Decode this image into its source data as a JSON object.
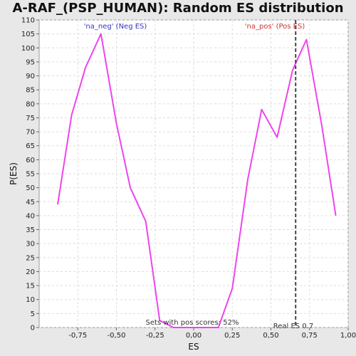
{
  "chart_data": {
    "type": "line",
    "title": "A-RAF_(PSP_HUMAN): Random ES distribution",
    "xlabel": "ES",
    "ylabel": "P(ES)",
    "xlim": [
      -1.0,
      1.0
    ],
    "ylim": [
      0,
      110
    ],
    "x_ticks": [
      -0.75,
      -0.5,
      -0.25,
      0.0,
      0.25,
      0.5,
      0.75,
      1.0
    ],
    "x_tick_labels": [
      "-0,75",
      "-0,50",
      "-0,25",
      "0,00",
      "0,25",
      "0,50",
      "0,75",
      "1,00"
    ],
    "y_ticks": [
      0,
      5,
      10,
      15,
      20,
      25,
      30,
      35,
      40,
      45,
      50,
      55,
      60,
      65,
      70,
      75,
      80,
      85,
      90,
      95,
      100,
      105,
      110
    ],
    "grid": true,
    "series": [
      {
        "color": "#ee44ee",
        "x": [
          -0.88,
          -0.79,
          -0.7,
          -0.6,
          -0.5,
          -0.41,
          -0.31,
          -0.22,
          -0.13,
          -0.03,
          0.06,
          0.16,
          0.25,
          0.35,
          0.44,
          0.54,
          0.64,
          0.73,
          0.83,
          0.92
        ],
        "y": [
          44,
          76,
          93,
          105,
          73,
          50,
          38,
          2.5,
          0,
          0,
          0,
          0,
          14,
          53,
          78,
          68,
          92,
          103,
          72,
          40
        ]
      }
    ],
    "vline": {
      "x": 0.66,
      "color": "#444444",
      "style": "dashed"
    },
    "annotations": {
      "neg_label": {
        "text": "'na_neg' (Neg ES)",
        "color": "#3333cc"
      },
      "pos_label": {
        "text": "'na_pos' (Pos ES)",
        "color": "#cc3333"
      },
      "sets_text": "Sets with pos scores: 52%",
      "real_es_text": "Real ES 0.7"
    }
  }
}
